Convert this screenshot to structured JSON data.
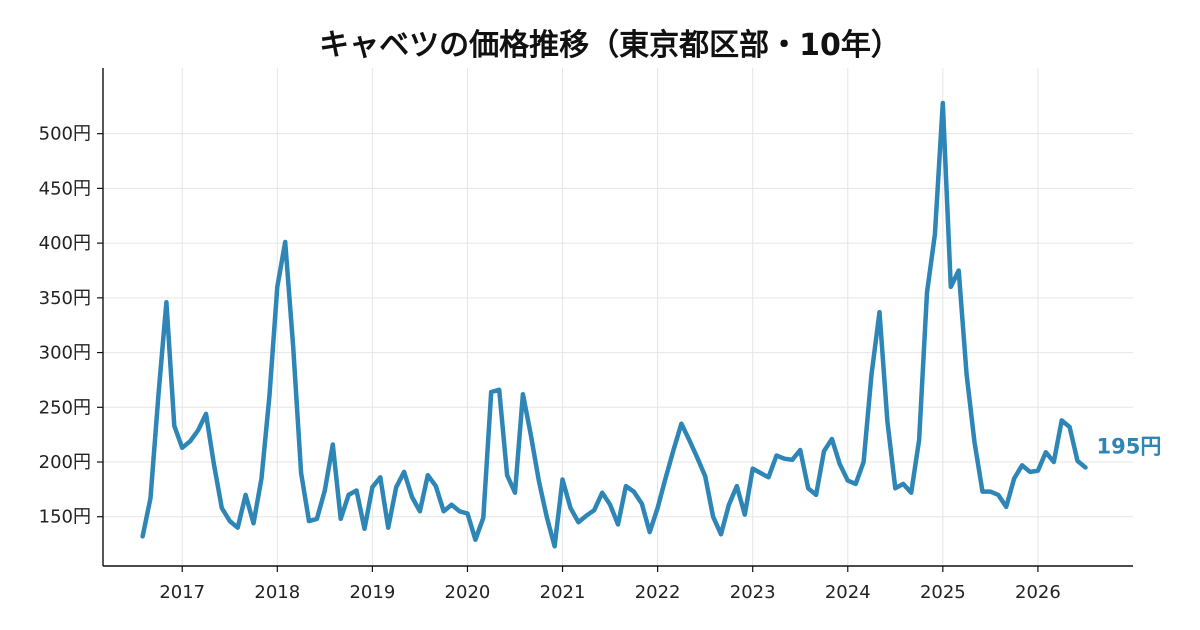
{
  "chart_data": {
    "type": "line",
    "title": "キャベツの価格推移（東京都区部・10年）",
    "xlabel": "",
    "ylabel": "",
    "y_unit": "円",
    "ylim": [
      105,
      560
    ],
    "xlim": [
      "2016-03-01",
      "2027-01-01"
    ],
    "grid": true,
    "color": "#2e86b7",
    "y_ticks": [
      "150円",
      "200円",
      "250円",
      "300円",
      "350円",
      "400円",
      "450円",
      "500円"
    ],
    "x_ticks": [
      "2017",
      "2018",
      "2019",
      "2020",
      "2021",
      "2022",
      "2023",
      "2024",
      "2025",
      "2026"
    ],
    "end_label": "195円",
    "series": [
      {
        "x": [
          "2016-08",
          "2016-09",
          "2016-10",
          "2016-11",
          "2016-12",
          "2017-01",
          "2017-02",
          "2017-03",
          "2017-04",
          "2017-05",
          "2017-06",
          "2017-07",
          "2017-08",
          "2017-09",
          "2017-10",
          "2017-11",
          "2017-12",
          "2018-01",
          "2018-02",
          "2018-03",
          "2018-04",
          "2018-05",
          "2018-06",
          "2018-07",
          "2018-08",
          "2018-09",
          "2018-10",
          "2018-11",
          "2018-12",
          "2019-01",
          "2019-02",
          "2019-03",
          "2019-04",
          "2019-05",
          "2019-06",
          "2019-07",
          "2019-08",
          "2019-09",
          "2019-10",
          "2019-11",
          "2019-12",
          "2020-01",
          "2020-02",
          "2020-03",
          "2020-04",
          "2020-05",
          "2020-06",
          "2020-07",
          "2020-08",
          "2020-09",
          "2020-10",
          "2020-11",
          "2020-12",
          "2021-01",
          "2021-02",
          "2021-03",
          "2021-04",
          "2021-05",
          "2021-06",
          "2021-07",
          "2021-08",
          "2021-09",
          "2021-10",
          "2021-11",
          "2021-12",
          "2022-01",
          "2022-02",
          "2022-03",
          "2022-04",
          "2022-05",
          "2022-06",
          "2022-07",
          "2022-08",
          "2022-09",
          "2022-10",
          "2022-11",
          "2022-12",
          "2023-01",
          "2023-02",
          "2023-03",
          "2023-04",
          "2023-05",
          "2023-06",
          "2023-07",
          "2023-08",
          "2023-09",
          "2023-10",
          "2023-11",
          "2023-12",
          "2024-01",
          "2024-02",
          "2024-03",
          "2024-04",
          "2024-05",
          "2024-06",
          "2024-07",
          "2024-08",
          "2024-09",
          "2024-10",
          "2024-11",
          "2024-12",
          "2025-01",
          "2025-02",
          "2025-03",
          "2025-04",
          "2025-05",
          "2025-06",
          "2025-07",
          "2025-08",
          "2025-09",
          "2025-10",
          "2025-11",
          "2025-12",
          "2026-01",
          "2026-02",
          "2026-03",
          "2026-04",
          "2026-05",
          "2026-06",
          "2026-07"
        ],
        "values": [
          132,
          167,
          262,
          346,
          233,
          213,
          219,
          229,
          244,
          198,
          158,
          146,
          140,
          170,
          144,
          185,
          260,
          360,
          401,
          305,
          190,
          146,
          148,
          174,
          216,
          148,
          170,
          174,
          139,
          177,
          186,
          140,
          177,
          191,
          168,
          155,
          188,
          178,
          155,
          161,
          155,
          153,
          129,
          149,
          264,
          266,
          188,
          172,
          262,
          225,
          183,
          150,
          123,
          184,
          158,
          145,
          151,
          156,
          172,
          161,
          143,
          178,
          173,
          162,
          136,
          158,
          185,
          211,
          235,
          220,
          204,
          187,
          150,
          134,
          161,
          178,
          152,
          194,
          190,
          186,
          206,
          203,
          202,
          211,
          176,
          170,
          210,
          221,
          198,
          183,
          180,
          200,
          280,
          337,
          237,
          176,
          180,
          172,
          220,
          355,
          408,
          528,
          360,
          375,
          280,
          218,
          173,
          173,
          170,
          159,
          185,
          197,
          191,
          192,
          209,
          200,
          238,
          232,
          201,
          195
        ]
      }
    ]
  }
}
